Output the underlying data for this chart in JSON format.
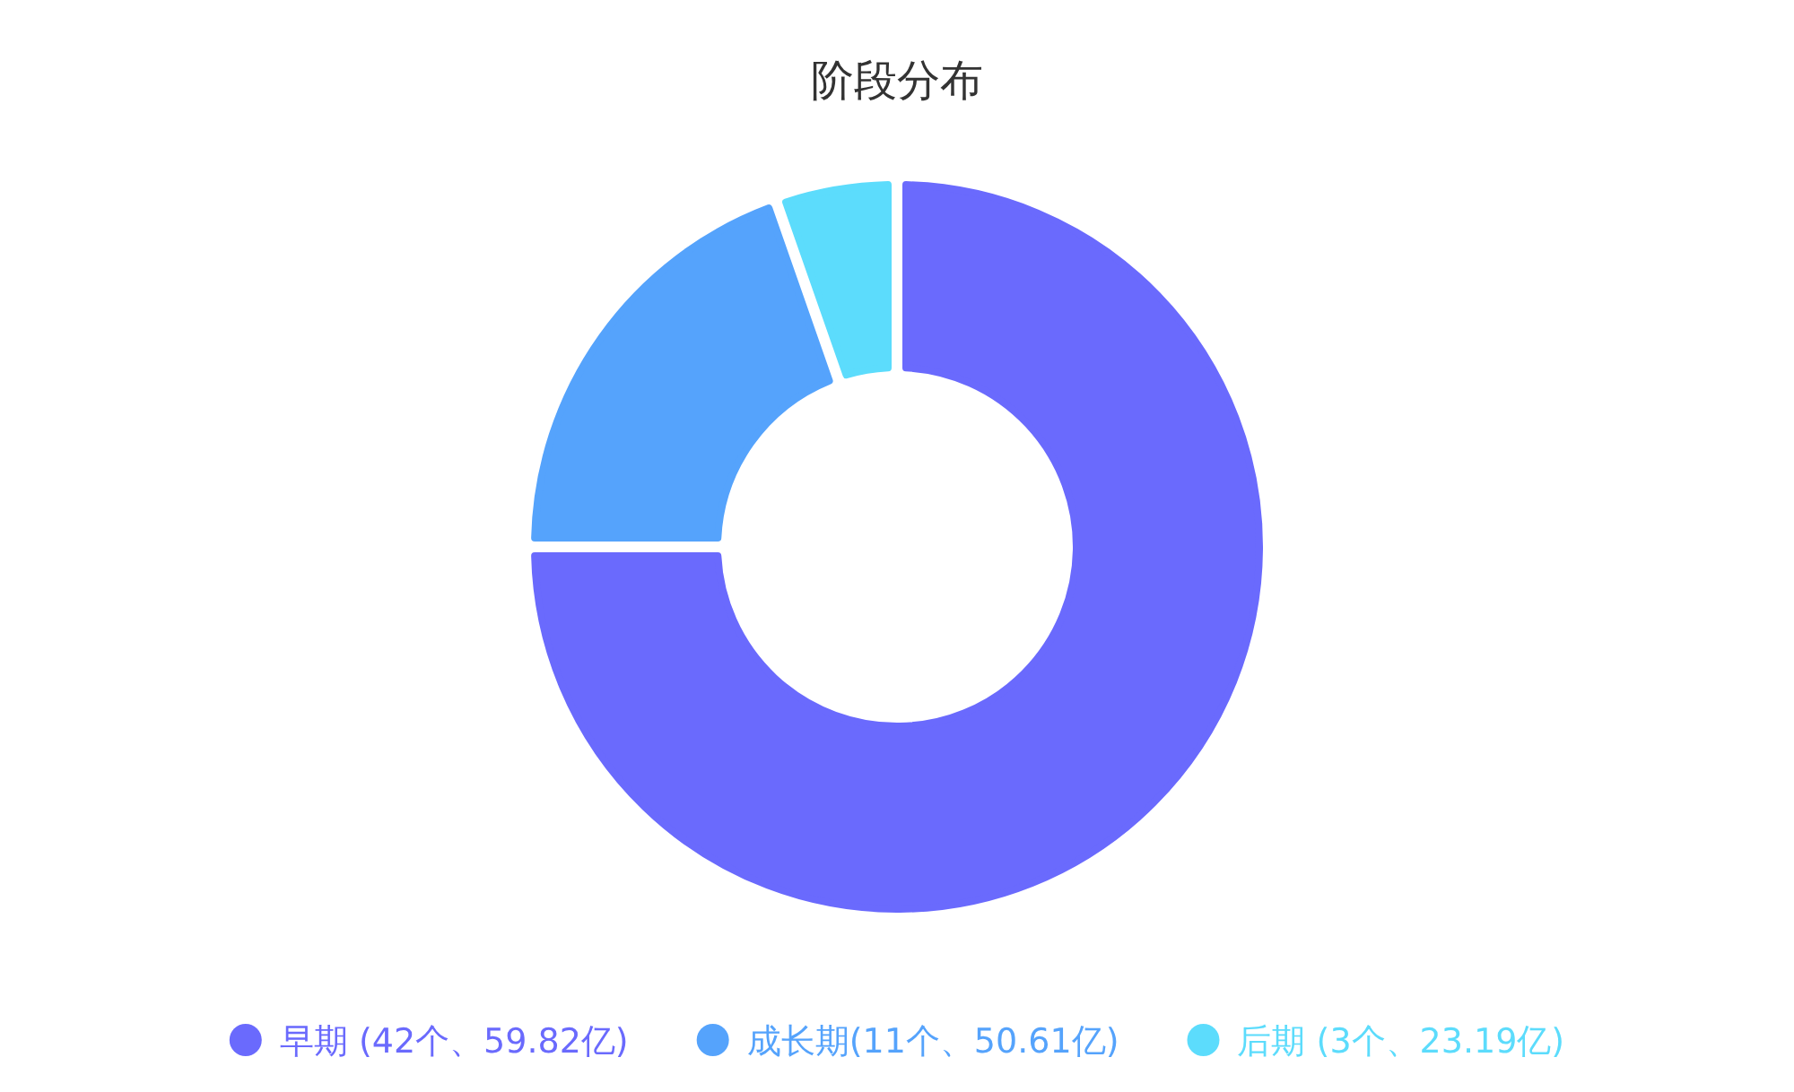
{
  "chart_data": {
    "type": "donut",
    "title": "阶段分布",
    "categories": [
      "早期 (42个、59.82亿)",
      "成长期(11个、50.61亿)",
      "后期 (3个、23.19亿)"
    ],
    "values": [
      42,
      11,
      3
    ],
    "colors": [
      "#6a6afd",
      "#55a3fc",
      "#5cdcfc"
    ],
    "legend": "bottom"
  }
}
